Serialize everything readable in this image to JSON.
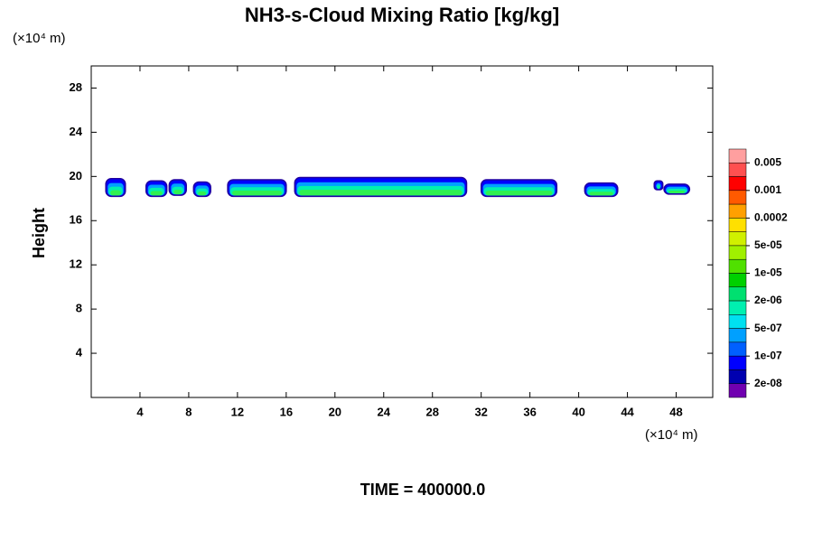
{
  "chart_data": {
    "type": "contour",
    "title": "NH3-s-Cloud Mixing Ratio [kg/kg]",
    "y_unit": "(×10⁴ m)",
    "x_unit": "(×10⁴ m)",
    "ylabel": "Height",
    "footer": "TIME = 400000.0",
    "xlim": [
      0,
      51
    ],
    "ylim": [
      0,
      30
    ],
    "xticks": [
      4,
      8,
      12,
      16,
      20,
      24,
      28,
      32,
      36,
      40,
      44,
      48
    ],
    "yticks": [
      4,
      8,
      12,
      16,
      20,
      24,
      28
    ],
    "patches": [
      {
        "x": [
          1.2,
          2.8
        ],
        "y": [
          18.2,
          19.8
        ]
      },
      {
        "x": [
          4.5,
          6.2
        ],
        "y": [
          18.2,
          19.6
        ]
      },
      {
        "x": [
          6.4,
          7.8
        ],
        "y": [
          18.3,
          19.7
        ]
      },
      {
        "x": [
          8.4,
          9.8
        ],
        "y": [
          18.2,
          19.5
        ]
      },
      {
        "x": [
          11.2,
          16.0
        ],
        "y": [
          18.2,
          19.7
        ]
      },
      {
        "x": [
          16.7,
          30.8
        ],
        "y": [
          18.2,
          19.9
        ]
      },
      {
        "x": [
          32.0,
          38.2
        ],
        "y": [
          18.2,
          19.7
        ]
      },
      {
        "x": [
          40.5,
          43.2
        ],
        "y": [
          18.2,
          19.4
        ]
      },
      {
        "x": [
          46.2,
          46.9
        ],
        "y": [
          18.8,
          19.6
        ]
      },
      {
        "x": [
          47.0,
          49.1
        ],
        "y": [
          18.4,
          19.3
        ]
      }
    ],
    "colorbar": {
      "colors": [
        "#ff9f9f",
        "#ff5050",
        "#ff0000",
        "#ff5a00",
        "#ffa000",
        "#ffe000",
        "#d0f000",
        "#a0f000",
        "#50e000",
        "#00d000",
        "#00e070",
        "#00f0b0",
        "#00e0f0",
        "#00a0ff",
        "#0060ff",
        "#0000ff",
        "#0000b0",
        "#7000b0"
      ],
      "levels": [
        0.005,
        0.001,
        0.0002,
        {
          "value": 5e-05,
          "label": "5e-05"
        },
        {
          "value": 1e-05,
          "label": "1e-05"
        },
        {
          "value": 2e-06,
          "label": "2e-06"
        },
        {
          "value": 5e-07,
          "label": "5e-07"
        },
        {
          "value": 1e-07,
          "label": "1e-07"
        },
        {
          "value": 2e-08,
          "label": "2e-08"
        }
      ]
    }
  }
}
